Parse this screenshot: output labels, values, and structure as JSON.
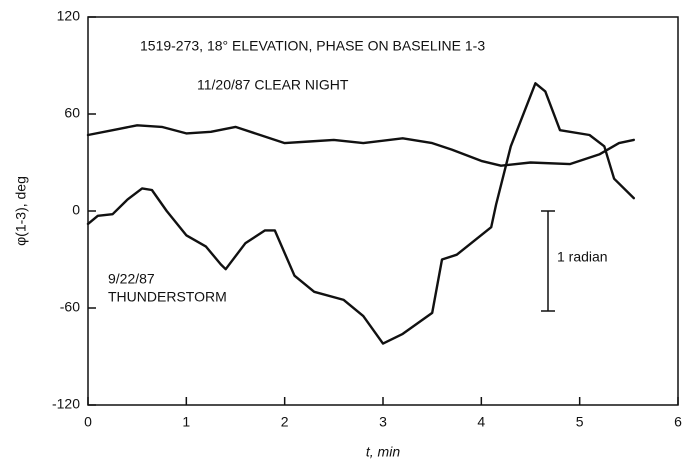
{
  "chart_data": {
    "type": "line",
    "xlabel": "t, min",
    "ylabel": "φ(1-3), deg",
    "annotations": [
      "1519-273, 18° ELEVATION, PHASE ON BASELINE 1-3",
      "11/20/87 CLEAR NIGHT",
      "9/22/87",
      "THUNDERSTORM",
      "1 radian"
    ],
    "xlim": [
      0,
      6
    ],
    "xticks": [
      0,
      1,
      2,
      3,
      4,
      5,
      6
    ],
    "ylim": [
      -120,
      120
    ],
    "yticks": [
      -120,
      -60,
      0,
      60,
      120
    ],
    "grid": false,
    "series": [
      {
        "name": "11/20/87 CLEAR NIGHT",
        "color": "#111111",
        "x": [
          0,
          0.25,
          0.5,
          0.75,
          1.0,
          1.25,
          1.5,
          1.75,
          2.0,
          2.25,
          2.5,
          2.8,
          3.2,
          3.5,
          3.7,
          4.0,
          4.2,
          4.5,
          4.9,
          5.2,
          5.4,
          5.55
        ],
        "values": [
          47,
          50,
          53,
          52,
          48,
          49,
          52,
          47,
          42,
          43,
          44,
          42,
          45,
          42,
          38,
          31,
          28,
          30,
          29,
          35,
          42,
          44
        ]
      },
      {
        "name": "9/22/87 THUNDERSTORM",
        "color": "#111111",
        "x": [
          0,
          0.1,
          0.25,
          0.4,
          0.55,
          0.65,
          0.8,
          1.0,
          1.2,
          1.35,
          1.4,
          1.45,
          1.6,
          1.8,
          1.9,
          2.1,
          2.3,
          2.6,
          2.8,
          3.0,
          3.2,
          3.5,
          3.6,
          3.75,
          4.1,
          4.15,
          4.3,
          4.55,
          4.65,
          4.8,
          5.1,
          5.25,
          5.35,
          5.55
        ],
        "values": [
          -8,
          -3,
          -2,
          7,
          14,
          13,
          0,
          -15,
          -22,
          -33,
          -36,
          -32,
          -20,
          -12,
          -12,
          -40,
          -50,
          -55,
          -65,
          -82,
          -76,
          -63,
          -30,
          -27,
          -10,
          4,
          40,
          79,
          74,
          50,
          47,
          40,
          20,
          8
        ]
      }
    ]
  }
}
